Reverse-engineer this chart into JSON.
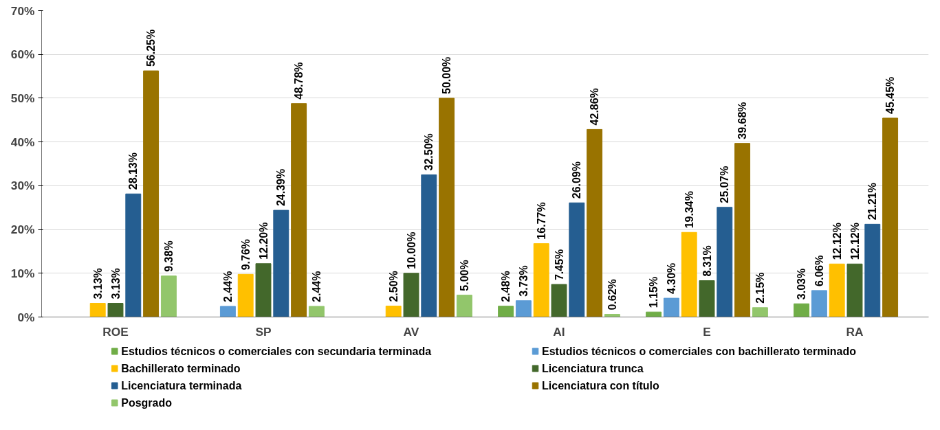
{
  "chart_data": {
    "type": "bar",
    "categories": [
      "ROE",
      "SP",
      "AV",
      "AI",
      "E",
      "RA"
    ],
    "series": [
      {
        "name": "Estudios técnicos o comerciales con secundaria terminada",
        "color": "#70ad47",
        "values": [
          null,
          null,
          null,
          2.48,
          1.15,
          3.03
        ],
        "value_labels": [
          null,
          null,
          null,
          "2.48%",
          "1.15%",
          "3.03%"
        ]
      },
      {
        "name": "Estudios técnicos o comerciales con bachillerato terminado",
        "color": "#5b9bd5",
        "values": [
          null,
          2.44,
          null,
          3.73,
          4.3,
          6.06
        ],
        "value_labels": [
          null,
          "2.44%",
          null,
          "3.73%",
          "4.30%",
          "6.06%"
        ]
      },
      {
        "name": "Bachillerato terminado",
        "color": "#ffc000",
        "values": [
          3.13,
          9.76,
          2.5,
          16.77,
          19.34,
          12.12
        ],
        "value_labels": [
          "3.13%",
          "9.76%",
          "2.50%",
          "16.77%",
          "19.34%",
          "12.12%"
        ]
      },
      {
        "name": "Licenciatura trunca",
        "color": "#43682b",
        "values": [
          3.13,
          12.2,
          10.0,
          7.45,
          8.31,
          12.12
        ],
        "value_labels": [
          "3.13%",
          "12.20%",
          "10.00%",
          "7.45%",
          "8.31%",
          "12.12%"
        ]
      },
      {
        "name": "Licenciatura terminada",
        "color": "#255e91",
        "values": [
          28.13,
          24.39,
          32.5,
          26.09,
          25.07,
          21.21
        ],
        "value_labels": [
          "28.13%",
          "24.39%",
          "32.50%",
          "26.09%",
          "25.07%",
          "21.21%"
        ]
      },
      {
        "name": "Licenciatura con título",
        "color": "#997300",
        "values": [
          56.25,
          48.78,
          50.0,
          42.86,
          39.68,
          45.45
        ],
        "value_labels": [
          "56.25%",
          "48.78%",
          "50.00%",
          "42.86%",
          "39.68%",
          "45.45%"
        ]
      },
      {
        "name": "Posgrado",
        "color": "#92c66b",
        "values": [
          9.38,
          2.44,
          5.0,
          0.62,
          2.15,
          null
        ],
        "value_labels": [
          "9.38%",
          "2.44%",
          "5.00%",
          "0.62%",
          "2.15%",
          null
        ]
      }
    ],
    "ylim": [
      0,
      70
    ],
    "yticks": [
      {
        "value": 0,
        "label": "0%"
      },
      {
        "value": 10,
        "label": "10%"
      },
      {
        "value": 20,
        "label": "20%"
      },
      {
        "value": 30,
        "label": "30%"
      },
      {
        "value": 40,
        "label": "40%"
      },
      {
        "value": 50,
        "label": "50%"
      },
      {
        "value": 60,
        "label": "60%"
      },
      {
        "value": 70,
        "label": "70%"
      }
    ],
    "grid": "y",
    "legend": "bottom"
  }
}
